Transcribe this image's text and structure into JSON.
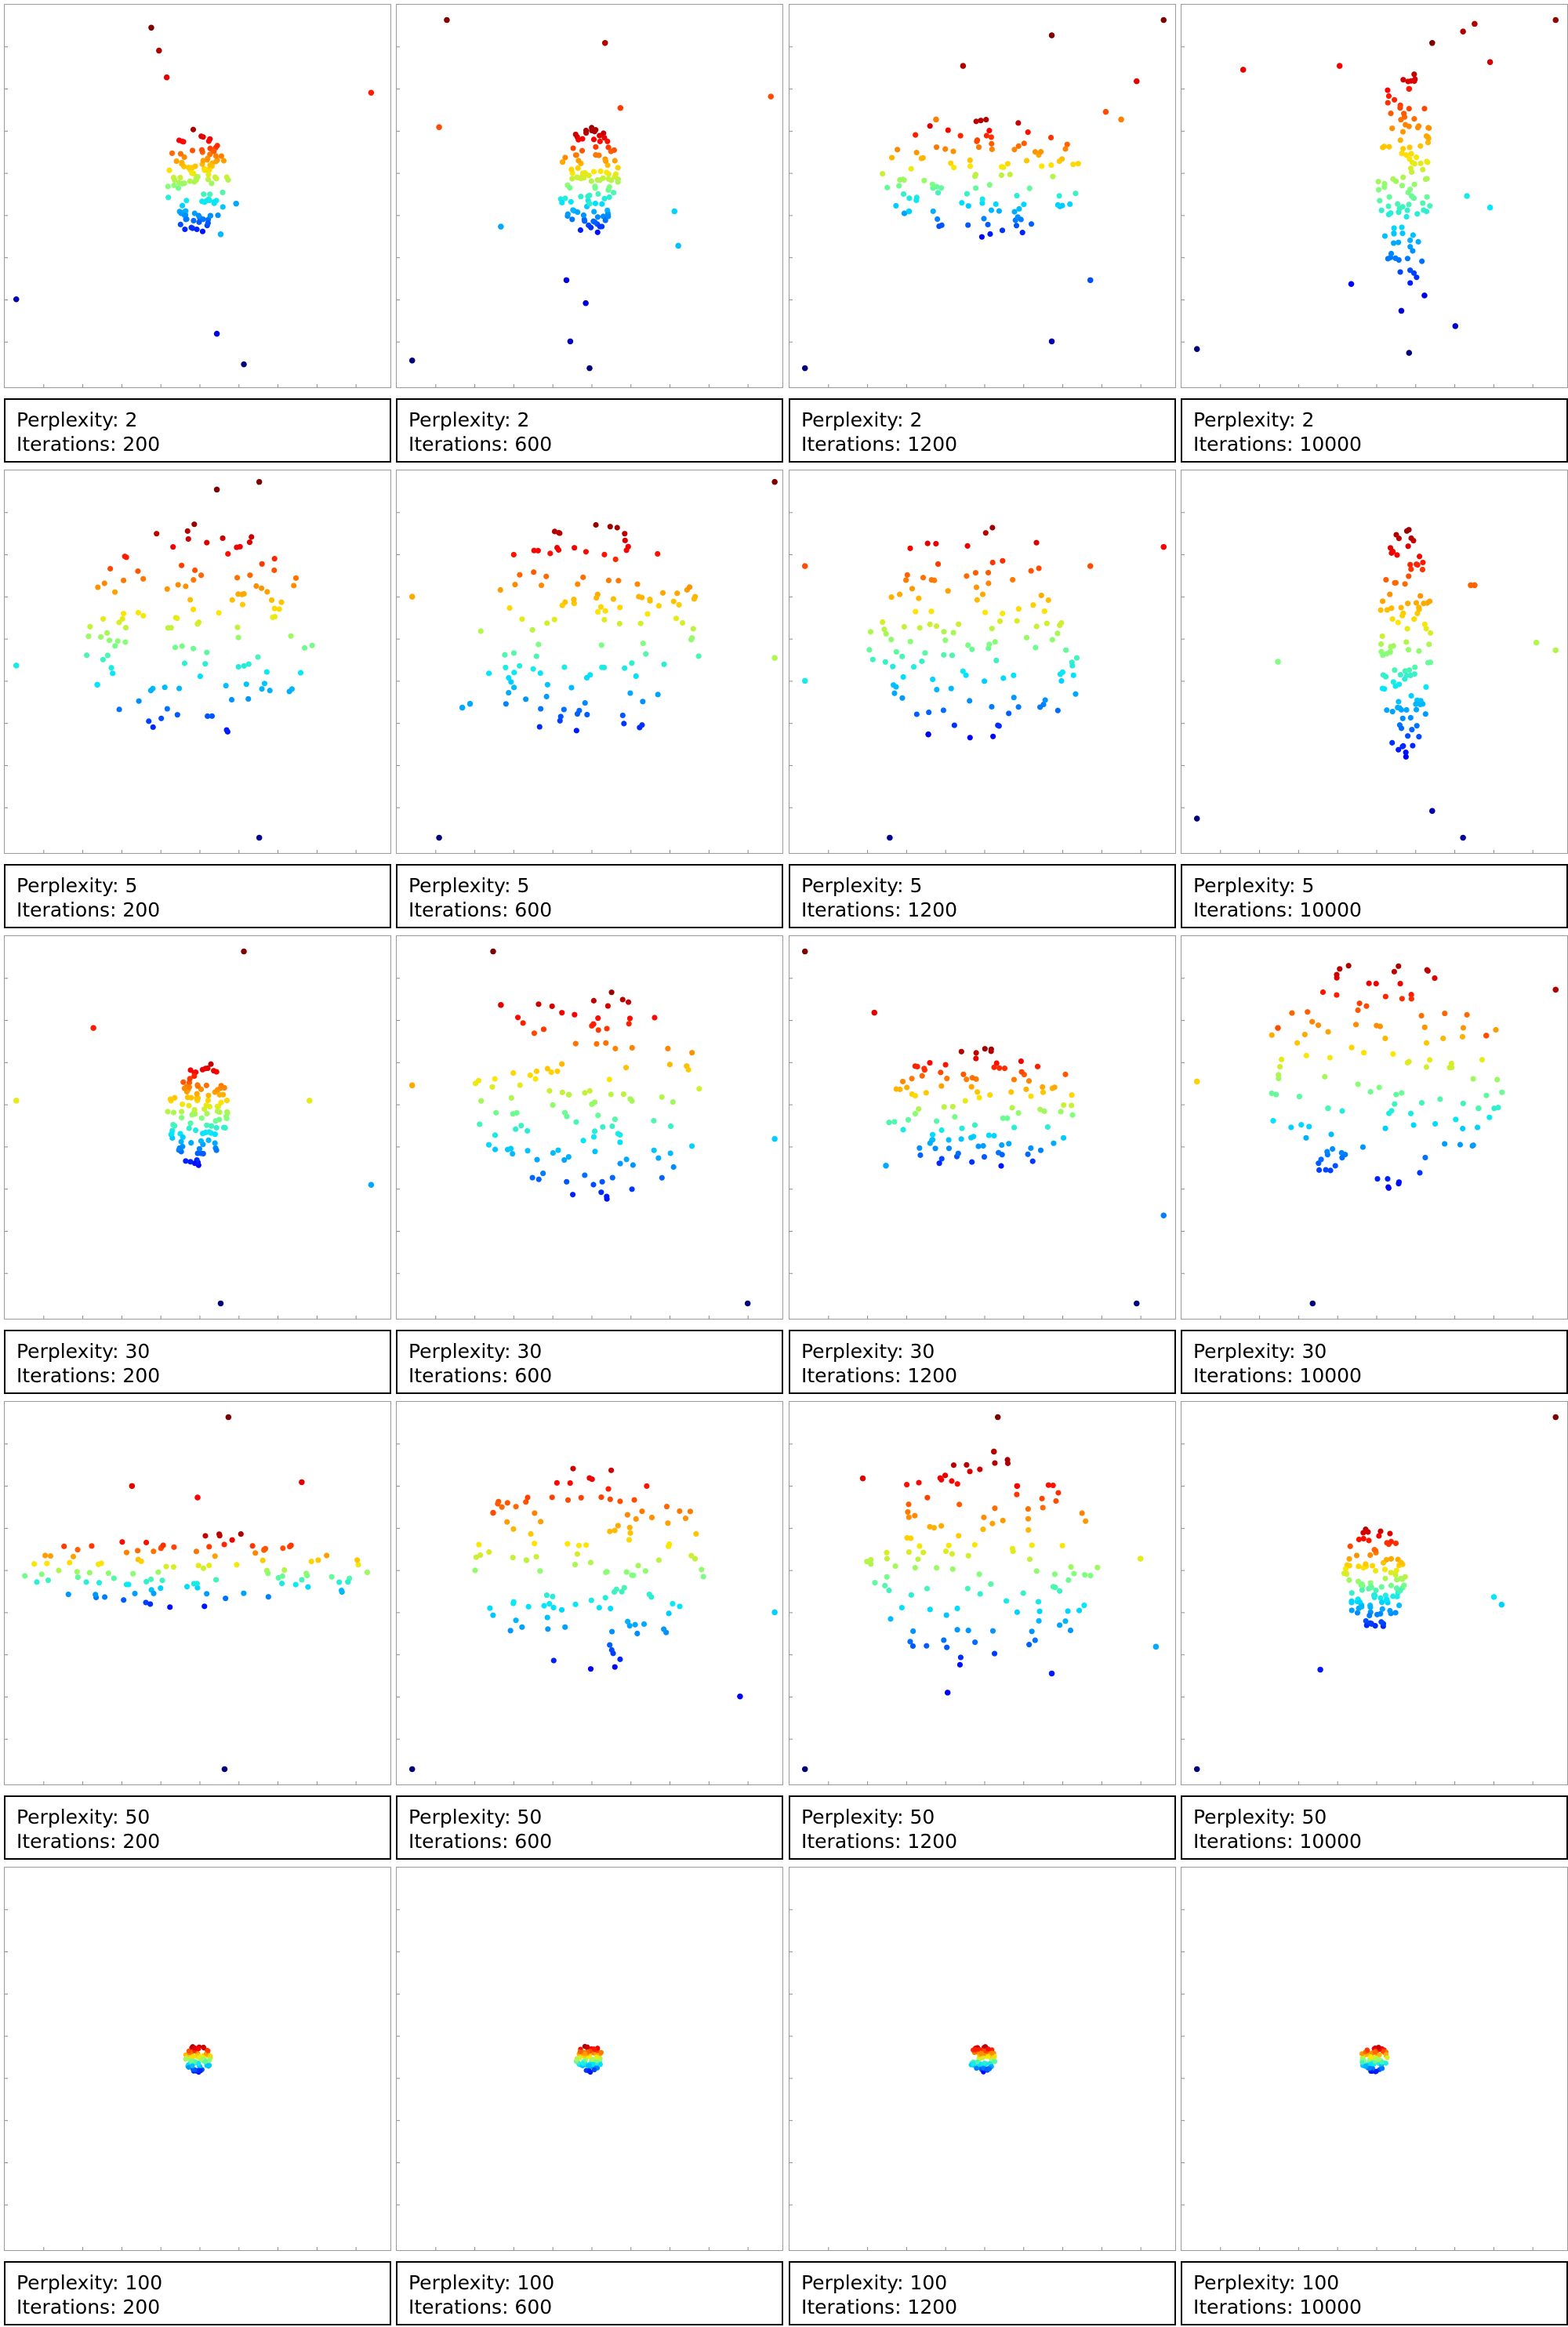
{
  "chart_data": {
    "type": "scatter",
    "layout": "5 rows x 4 columns small multiples",
    "axes": {
      "ticks_on_left_and_bottom": true,
      "tick_labels_shown": false,
      "grid": false
    },
    "colormap": [
      "#00007f",
      "#0000ff",
      "#007fff",
      "#00e5ff",
      "#7fff7f",
      "#ffe500",
      "#ff7f00",
      "#ff0000",
      "#7f0000"
    ],
    "color_by": "order of points (jet colormap)",
    "panels": [
      {
        "perplexity_label": "Perplexity: 2",
        "iterations_label": "Iterations: 200",
        "perplexity": 2,
        "iterations": 200,
        "shape": "compact",
        "points": [
          [
            0.5,
            0.45,
            0.55
          ],
          [
            0.38,
            0.06,
            1.0
          ],
          [
            0.42,
            0.19,
            0.9
          ],
          [
            0.4,
            0.12,
            0.95
          ],
          [
            0.95,
            0.23,
            0.85
          ],
          [
            0.03,
            0.77,
            0.05
          ],
          [
            0.55,
            0.86,
            0.1
          ],
          [
            0.62,
            0.94,
            0.0
          ],
          [
            0.6,
            0.52,
            0.3
          ],
          [
            0.56,
            0.6,
            0.32
          ]
        ]
      },
      {
        "perplexity_label": "Perplexity: 2",
        "iterations_label": "Iterations: 600",
        "perplexity": 2,
        "iterations": 600,
        "shape": "compact",
        "points": [
          [
            0.5,
            0.52,
            0.42
          ],
          [
            0.13,
            0.04,
            1.0
          ],
          [
            0.54,
            0.1,
            0.95
          ],
          [
            0.11,
            0.32,
            0.8
          ],
          [
            0.58,
            0.27,
            0.82
          ],
          [
            0.97,
            0.24,
            0.8
          ],
          [
            0.72,
            0.54,
            0.35
          ],
          [
            0.27,
            0.58,
            0.3
          ],
          [
            0.73,
            0.63,
            0.33
          ],
          [
            0.44,
            0.72,
            0.1
          ],
          [
            0.49,
            0.78,
            0.08
          ],
          [
            0.45,
            0.88,
            0.06
          ],
          [
            0.5,
            0.95,
            0.0
          ],
          [
            0.04,
            0.93,
            0.0
          ]
        ]
      },
      {
        "perplexity_label": "Perplexity: 2",
        "iterations_label": "Iterations: 1200",
        "perplexity": 2,
        "iterations": 1200,
        "shape": "wide",
        "points": [
          [
            0.68,
            0.08,
            1.0
          ],
          [
            0.97,
            0.04,
            1.0
          ],
          [
            0.45,
            0.16,
            0.95
          ],
          [
            0.9,
            0.2,
            0.9
          ],
          [
            0.38,
            0.3,
            0.75
          ],
          [
            0.82,
            0.28,
            0.8
          ],
          [
            0.86,
            0.3,
            0.75
          ],
          [
            0.31,
            0.54,
            0.35
          ],
          [
            0.78,
            0.72,
            0.2
          ],
          [
            0.68,
            0.88,
            0.05
          ],
          [
            0.04,
            0.95,
            0.0
          ]
        ]
      },
      {
        "perplexity_label": "Perplexity: 2",
        "iterations_label": "Iterations: 10000",
        "perplexity": 2,
        "iterations": 10000,
        "shape": "tall",
        "points": [
          [
            0.97,
            0.04,
            0.98
          ],
          [
            0.65,
            0.1,
            1.0
          ],
          [
            0.73,
            0.07,
            0.95
          ],
          [
            0.8,
            0.15,
            0.92
          ],
          [
            0.16,
            0.17,
            0.9
          ],
          [
            0.41,
            0.16,
            0.88
          ],
          [
            0.59,
            0.22,
            0.85
          ],
          [
            0.76,
            0.05,
            0.95
          ],
          [
            0.74,
            0.5,
            0.4
          ],
          [
            0.8,
            0.53,
            0.38
          ],
          [
            0.44,
            0.73,
            0.12
          ],
          [
            0.63,
            0.76,
            0.1
          ],
          [
            0.57,
            0.8,
            0.08
          ],
          [
            0.71,
            0.84,
            0.08
          ],
          [
            0.59,
            0.91,
            0.0
          ],
          [
            0.04,
            0.9,
            0.0
          ]
        ]
      },
      {
        "perplexity_label": "Perplexity: 5",
        "iterations_label": "Iterations: 200",
        "perplexity": 5,
        "iterations": 200,
        "shape": "spread",
        "points": [
          [
            0.03,
            0.51,
            0.4
          ],
          [
            0.24,
            0.56,
            0.38
          ],
          [
            0.66,
            0.96,
            0.02
          ],
          [
            0.55,
            0.05,
            1.0
          ],
          [
            0.66,
            0.03,
            1.0
          ]
        ]
      },
      {
        "perplexity_label": "Perplexity: 5",
        "iterations_label": "Iterations: 600",
        "perplexity": 5,
        "iterations": 600,
        "shape": "spread",
        "points": [
          [
            0.98,
            0.03,
            1.0
          ],
          [
            0.04,
            0.33,
            0.7
          ],
          [
            0.98,
            0.49,
            0.55
          ],
          [
            0.11,
            0.96,
            0.0
          ],
          [
            0.17,
            0.62,
            0.3
          ],
          [
            0.19,
            0.61,
            0.3
          ]
        ]
      },
      {
        "perplexity_label": "Perplexity: 5",
        "iterations_label": "Iterations: 1200",
        "perplexity": 5,
        "iterations": 1200,
        "shape": "spread",
        "points": [
          [
            0.97,
            0.2,
            0.88
          ],
          [
            0.04,
            0.55,
            0.4
          ],
          [
            0.36,
            0.69,
            0.12
          ],
          [
            0.26,
            0.96,
            0.02
          ],
          [
            0.04,
            0.25,
            0.8
          ],
          [
            0.78,
            0.25,
            0.8
          ]
        ]
      },
      {
        "perplexity_label": "Perplexity: 5",
        "iterations_label": "Iterations: 10000",
        "perplexity": 5,
        "iterations": 10000,
        "shape": "tall",
        "points": [
          [
            0.25,
            0.5,
            0.5
          ],
          [
            0.92,
            0.45,
            0.55
          ],
          [
            0.97,
            0.47,
            0.55
          ],
          [
            0.04,
            0.91,
            0.0
          ],
          [
            0.65,
            0.89,
            0.05
          ],
          [
            0.73,
            0.96,
            0.03
          ],
          [
            0.75,
            0.3,
            0.78
          ],
          [
            0.76,
            0.3,
            0.78
          ]
        ]
      },
      {
        "perplexity_label": "Perplexity: 30",
        "iterations_label": "Iterations: 200",
        "perplexity": 30,
        "iterations": 200,
        "shape": "compact",
        "points": [
          [
            0.62,
            0.04,
            1.0
          ],
          [
            0.23,
            0.24,
            0.85
          ],
          [
            0.03,
            0.43,
            0.6
          ],
          [
            0.79,
            0.43,
            0.6
          ],
          [
            0.95,
            0.65,
            0.3
          ],
          [
            0.56,
            0.96,
            0.0
          ]
        ]
      },
      {
        "perplexity_label": "Perplexity: 30",
        "iterations_label": "Iterations: 600",
        "perplexity": 30,
        "iterations": 600,
        "shape": "spread",
        "points": [
          [
            0.25,
            0.04,
            1.0
          ],
          [
            0.27,
            0.18,
            0.9
          ],
          [
            0.51,
            0.23,
            0.85
          ],
          [
            0.04,
            0.39,
            0.7
          ],
          [
            0.98,
            0.53,
            0.35
          ],
          [
            0.91,
            0.96,
            0.0
          ]
        ]
      },
      {
        "perplexity_label": "Perplexity: 30",
        "iterations_label": "Iterations: 1200",
        "perplexity": 30,
        "iterations": 1200,
        "shape": "wide",
        "points": [
          [
            0.04,
            0.04,
            1.0
          ],
          [
            0.22,
            0.2,
            0.9
          ],
          [
            0.97,
            0.73,
            0.25
          ],
          [
            0.9,
            0.96,
            0.0
          ],
          [
            0.25,
            0.6,
            0.3
          ]
        ]
      },
      {
        "perplexity_label": "Perplexity: 30",
        "iterations_label": "Iterations: 10000",
        "perplexity": 30,
        "iterations": 10000,
        "shape": "layered",
        "points": [
          [
            0.97,
            0.14,
            0.95
          ],
          [
            0.04,
            0.38,
            0.65
          ],
          [
            0.77,
            0.45,
            0.45
          ],
          [
            0.34,
            0.96,
            0.0
          ],
          [
            0.38,
            0.45,
            0.45
          ],
          [
            0.25,
            0.24,
            0.8
          ],
          [
            0.79,
            0.26,
            0.8
          ]
        ]
      },
      {
        "perplexity_label": "Perplexity: 50",
        "iterations_label": "Iterations: 200",
        "perplexity": 50,
        "iterations": 200,
        "shape": "flat",
        "points": [
          [
            0.58,
            0.04,
            1.0
          ],
          [
            0.33,
            0.22,
            0.9
          ],
          [
            0.5,
            0.25,
            0.88
          ],
          [
            0.77,
            0.21,
            0.9
          ],
          [
            0.57,
            0.96,
            0.0
          ]
        ]
      },
      {
        "perplexity_label": "Perplexity: 50",
        "iterations_label": "Iterations: 600",
        "perplexity": 50,
        "iterations": 600,
        "shape": "spread",
        "points": [
          [
            0.04,
            0.96,
            0.0
          ],
          [
            0.25,
            0.29,
            0.8
          ],
          [
            0.98,
            0.55,
            0.35
          ],
          [
            0.89,
            0.77,
            0.12
          ]
        ]
      },
      {
        "perplexity_label": "Perplexity: 50",
        "iterations_label": "Iterations: 1200",
        "perplexity": 50,
        "iterations": 1200,
        "shape": "spread",
        "points": [
          [
            0.04,
            0.96,
            0.0
          ],
          [
            0.54,
            0.04,
            1.0
          ],
          [
            0.53,
            0.13,
            0.95
          ],
          [
            0.19,
            0.2,
            0.9
          ],
          [
            0.59,
            0.22,
            0.88
          ],
          [
            0.91,
            0.41,
            0.6
          ],
          [
            0.95,
            0.64,
            0.3
          ],
          [
            0.41,
            0.76,
            0.12
          ],
          [
            0.68,
            0.71,
            0.15
          ]
        ]
      },
      {
        "perplexity_label": "Perplexity: 50",
        "iterations_label": "Iterations: 10000",
        "perplexity": 50,
        "iterations": 10000,
        "shape": "compact",
        "points": [
          [
            0.97,
            0.04,
            1.0
          ],
          [
            0.04,
            0.96,
            0.0
          ],
          [
            0.36,
            0.7,
            0.15
          ],
          [
            0.83,
            0.53,
            0.35
          ],
          [
            0.81,
            0.51,
            0.38
          ]
        ]
      },
      {
        "perplexity_label": "Perplexity: 100",
        "iterations_label": "Iterations: 200",
        "perplexity": 100,
        "iterations": 200,
        "shape": "tiny",
        "points": []
      },
      {
        "perplexity_label": "Perplexity: 100",
        "iterations_label": "Iterations: 600",
        "perplexity": 100,
        "iterations": 600,
        "shape": "tiny",
        "points": []
      },
      {
        "perplexity_label": "Perplexity: 100",
        "iterations_label": "Iterations: 1200",
        "perplexity": 100,
        "iterations": 1200,
        "shape": "tiny",
        "points": []
      },
      {
        "perplexity_label": "Perplexity: 100",
        "iterations_label": "Iterations: 10000",
        "perplexity": 100,
        "iterations": 10000,
        "shape": "tiny",
        "points": []
      }
    ]
  }
}
